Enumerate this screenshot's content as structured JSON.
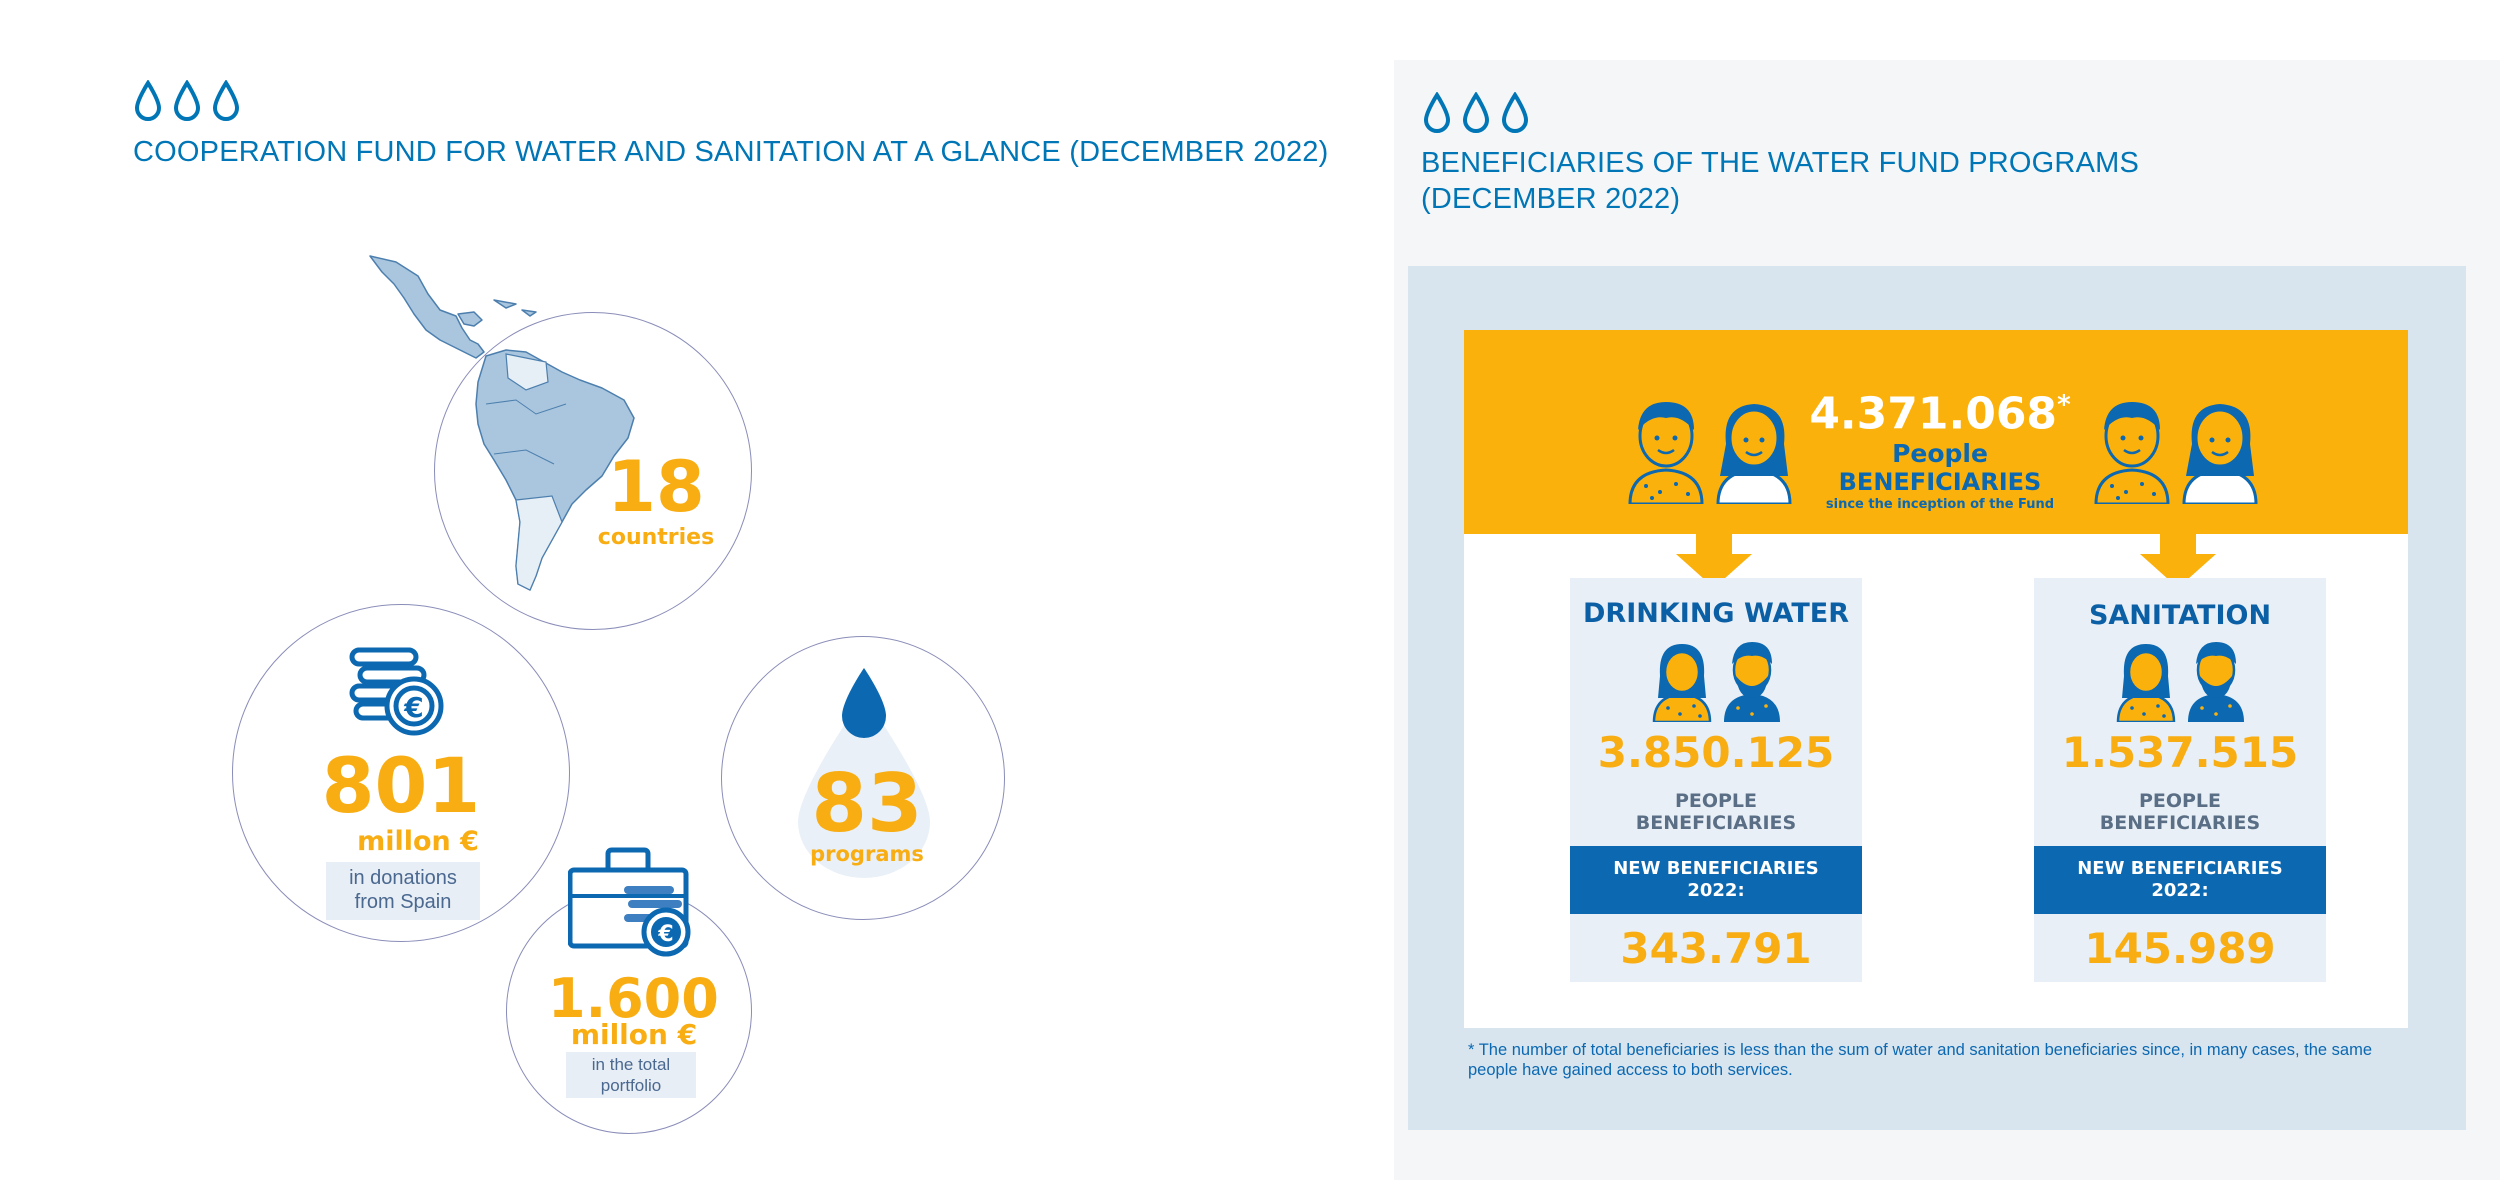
{
  "left": {
    "title": "COOPERATION FUND FOR WATER AND SANITATION AT A GLANCE (DECEMBER 2022)",
    "countries": {
      "value": "18",
      "label": "countries"
    },
    "donations": {
      "value": "801",
      "unit": "millon €",
      "note_line1": "in donations",
      "note_line2": "from Spain"
    },
    "programs": {
      "value": "83",
      "label": "programs"
    },
    "portfolio": {
      "value": "1.600",
      "unit": "millon €",
      "note_line1": "in the total",
      "note_line2": "portfolio"
    }
  },
  "right": {
    "title_line1": "BENEFICIARIES OF THE WATER FUND PROGRAMS",
    "title_line2": "(DECEMBER 2022)",
    "total": {
      "value": "4.371.068",
      "asterisk": "*",
      "line1": "People",
      "line2": "BENEFICIARIES",
      "line3": "since the inception of the Fund"
    },
    "drinking": {
      "title": "DRINKING WATER",
      "value": "3.850.125",
      "label_line1": "PEOPLE",
      "label_line2": "BENEFICIARIES",
      "new_line1": "NEW BENEFICIARIES",
      "new_line2": "2022:",
      "new_value": "343.791"
    },
    "sanitation": {
      "title": "SANITATION",
      "value": "1.537.515",
      "label_line1": "PEOPLE",
      "label_line2": "BENEFICIARIES",
      "new_line1": "NEW BENEFICIARIES",
      "new_line2": "2022:",
      "new_value": "145.989"
    },
    "footnote": "* The number of total beneficiaries is less than the sum of water and sanitation beneficiaries since, in many cases, the same people have gained access to both services."
  },
  "colors": {
    "blue": "#0076b6",
    "orange": "#f8ad13",
    "yellow_band": "#fbb10c",
    "dark_blue": "#0b68b1"
  }
}
